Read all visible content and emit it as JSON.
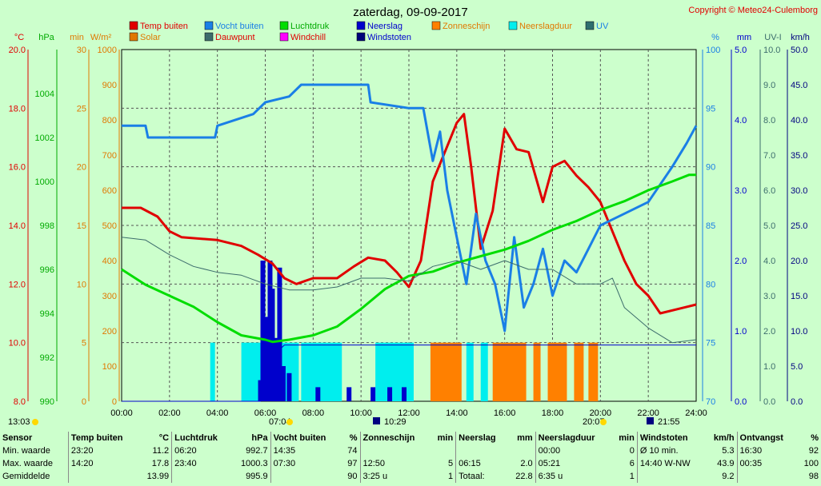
{
  "header": {
    "title": "zaterdag, 09-09-2017",
    "copyright": "Copyright © Meteo24-Culemborg"
  },
  "colors": {
    "temp": "#e00000",
    "vocht": "#1a7fe6",
    "luchtdruk": "#00dd00",
    "neerslag": "#0000cc",
    "solar": "#e07800",
    "dauwpunt": "#3c6c6c",
    "windchill": "#ff00ff",
    "windstoten": "#00007a",
    "zonneschijn": "#ff8000",
    "neerslagduur": "#00eeee",
    "uv": "#2f6f6f"
  },
  "chart_data": {
    "type": "line",
    "legend": [
      {
        "key": "temp",
        "label": "Temp buiten"
      },
      {
        "key": "vocht",
        "label": "Vocht buiten"
      },
      {
        "key": "luchtdruk",
        "label": "Luchtdruk"
      },
      {
        "key": "neerslag",
        "label": "Neerslag"
      },
      {
        "key": "zonneschijn",
        "label": "Zonneschijn"
      },
      {
        "key": "neerslagduur",
        "label": "Neerslagduur"
      },
      {
        "key": "uv",
        "label": "UV"
      },
      {
        "key": "solar",
        "label": "Solar"
      },
      {
        "key": "dauwpunt",
        "label": "Dauwpunt"
      },
      {
        "key": "windchill",
        "label": "Windchill"
      },
      {
        "key": "windstoten",
        "label": "Windstoten"
      }
    ],
    "x_ticks": [
      "00:00",
      "02:00",
      "04:00",
      "06:00",
      "08:00",
      "10:00",
      "12:00",
      "14:00",
      "16:00",
      "18:00",
      "20:00",
      "22:00",
      "24:00"
    ],
    "axes": {
      "temp": {
        "label": "°C",
        "ticks": [
          "20.0",
          "18.0",
          "16.0",
          "14.0",
          "12.0",
          "10.0",
          "8.0"
        ],
        "min": 8,
        "max": 20
      },
      "pressure": {
        "label": "hPa",
        "ticks": [
          "1004",
          "1002",
          "1000",
          "998",
          "996",
          "994",
          "992",
          "990"
        ],
        "min": 990,
        "max": 1006
      },
      "minutes": {
        "label": "min",
        "ticks": [
          "30",
          "25",
          "20",
          "15",
          "10",
          "5",
          "0"
        ],
        "min": 0,
        "max": 30
      },
      "solar": {
        "label": "W/m²",
        "ticks": [
          "1000",
          "900",
          "800",
          "700",
          "600",
          "500",
          "400",
          "300",
          "200",
          "100",
          "0"
        ],
        "min": 0,
        "max": 1000
      },
      "humidity": {
        "label": "%",
        "ticks": [
          "100",
          "95",
          "90",
          "85",
          "80",
          "75",
          "70"
        ],
        "min": 70,
        "max": 100
      },
      "rain": {
        "label": "mm",
        "ticks": [
          "5.0",
          "4.0",
          "3.0",
          "2.0",
          "1.0",
          "0.0"
        ],
        "min": 0,
        "max": 5
      },
      "uv": {
        "label": "UV-I",
        "ticks": [
          "10.0",
          "9.0",
          "8.0",
          "7.0",
          "6.0",
          "5.0",
          "4.0",
          "3.0",
          "2.0",
          "1.0",
          "0.0"
        ],
        "min": 0,
        "max": 10
      },
      "wind": {
        "label": "km/h",
        "ticks": [
          "50.0",
          "45.0",
          "40.0",
          "35.0",
          "30.0",
          "25.0",
          "20.0",
          "15.0",
          "10.0",
          "5.0",
          "0.0"
        ],
        "min": 0,
        "max": 50
      }
    },
    "series": [
      {
        "key": "temp",
        "unit": "°C",
        "points": [
          [
            0,
            14.6
          ],
          [
            0.8,
            14.6
          ],
          [
            1.5,
            14.3
          ],
          [
            2,
            13.8
          ],
          [
            2.5,
            13.6
          ],
          [
            4,
            13.5
          ],
          [
            5,
            13.3
          ],
          [
            5.7,
            13.0
          ],
          [
            6.3,
            12.7
          ],
          [
            6.8,
            12.2
          ],
          [
            7.3,
            12.0
          ],
          [
            8,
            12.2
          ],
          [
            9,
            12.2
          ],
          [
            9.7,
            12.6
          ],
          [
            10.3,
            12.9
          ],
          [
            11,
            12.8
          ],
          [
            11.5,
            12.4
          ],
          [
            12,
            11.9
          ],
          [
            12.5,
            12.8
          ],
          [
            13,
            15.5
          ],
          [
            13.5,
            16.5
          ],
          [
            14,
            17.5
          ],
          [
            14.3,
            17.8
          ],
          [
            14.6,
            16.0
          ],
          [
            15,
            13.2
          ],
          [
            15.5,
            14.5
          ],
          [
            16,
            17.3
          ],
          [
            16.5,
            16.6
          ],
          [
            17,
            16.5
          ],
          [
            17.6,
            14.8
          ],
          [
            18,
            16.0
          ],
          [
            18.5,
            16.2
          ],
          [
            19,
            15.7
          ],
          [
            19.5,
            15.3
          ],
          [
            20,
            14.8
          ],
          [
            20.5,
            13.8
          ],
          [
            21,
            12.8
          ],
          [
            21.5,
            12.0
          ],
          [
            22,
            11.6
          ],
          [
            22.5,
            11.0
          ],
          [
            23.5,
            11.2
          ],
          [
            24,
            11.3
          ]
        ]
      },
      {
        "key": "vocht",
        "unit": "%",
        "points": [
          [
            0,
            93.5
          ],
          [
            1,
            93.5
          ],
          [
            1.1,
            92.5
          ],
          [
            3.9,
            92.5
          ],
          [
            4,
            93.5
          ],
          [
            5.5,
            94.5
          ],
          [
            6,
            95.5
          ],
          [
            7,
            96
          ],
          [
            7.5,
            97
          ],
          [
            10.3,
            97
          ],
          [
            10.4,
            95.5
          ],
          [
            12,
            95
          ],
          [
            12.6,
            95
          ],
          [
            13,
            90.5
          ],
          [
            13.3,
            93
          ],
          [
            13.6,
            88
          ],
          [
            14,
            84
          ],
          [
            14.4,
            80
          ],
          [
            14.8,
            86
          ],
          [
            15.2,
            82
          ],
          [
            15.6,
            80
          ],
          [
            16,
            76
          ],
          [
            16.4,
            84
          ],
          [
            16.8,
            78
          ],
          [
            17.2,
            80
          ],
          [
            17.6,
            83
          ],
          [
            18,
            79
          ],
          [
            18.5,
            82
          ],
          [
            19,
            81
          ],
          [
            19.5,
            83
          ],
          [
            20,
            85
          ],
          [
            21,
            86
          ],
          [
            22,
            87
          ],
          [
            23,
            90
          ],
          [
            23.6,
            92
          ],
          [
            24,
            93.5
          ]
        ]
      },
      {
        "key": "luchtdruk",
        "unit": "hPa",
        "points": [
          [
            0,
            996.0
          ],
          [
            1,
            995.3
          ],
          [
            2,
            994.8
          ],
          [
            3,
            994.3
          ],
          [
            4,
            993.6
          ],
          [
            5,
            993.0
          ],
          [
            6,
            992.8
          ],
          [
            6.3,
            992.7
          ],
          [
            7,
            992.8
          ],
          [
            8,
            993.0
          ],
          [
            9,
            993.4
          ],
          [
            10,
            994.2
          ],
          [
            11,
            995.1
          ],
          [
            12,
            995.7
          ],
          [
            13,
            995.9
          ],
          [
            14,
            996.3
          ],
          [
            15,
            996.6
          ],
          [
            16,
            996.9
          ],
          [
            17,
            997.3
          ],
          [
            18,
            997.8
          ],
          [
            19,
            998.2
          ],
          [
            20,
            998.7
          ],
          [
            21,
            999.1
          ],
          [
            22,
            999.6
          ],
          [
            23,
            1000.0
          ],
          [
            23.7,
            1000.3
          ],
          [
            24,
            1000.3
          ]
        ]
      },
      {
        "key": "dauwpunt",
        "unit": "°C",
        "points": [
          [
            0,
            13.6
          ],
          [
            1,
            13.5
          ],
          [
            2,
            13.0
          ],
          [
            3,
            12.6
          ],
          [
            4,
            12.4
          ],
          [
            5,
            12.3
          ],
          [
            6,
            12.0
          ],
          [
            7,
            11.8
          ],
          [
            8,
            11.8
          ],
          [
            9,
            11.9
          ],
          [
            10,
            12.2
          ],
          [
            11,
            12.2
          ],
          [
            12,
            12.1
          ],
          [
            13,
            12.6
          ],
          [
            14,
            12.8
          ],
          [
            15,
            12.5
          ],
          [
            16,
            12.8
          ],
          [
            17,
            12.5
          ],
          [
            18,
            12.5
          ],
          [
            19,
            12.0
          ],
          [
            20,
            12.0
          ],
          [
            20.5,
            12.2
          ],
          [
            21,
            11.2
          ],
          [
            22,
            10.5
          ],
          [
            23,
            10.0
          ],
          [
            24,
            10.1
          ]
        ]
      },
      {
        "key": "neerslag_total",
        "unit": "mm",
        "points": [
          [
            0,
            0
          ],
          [
            5.8,
            0
          ],
          [
            6.2,
            0.6
          ],
          [
            6.8,
            0.8
          ],
          [
            8,
            0.8
          ],
          [
            24,
            0.8
          ]
        ]
      }
    ],
    "events": [
      {
        "label": "13:03",
        "position": "left"
      },
      {
        "label": "07:04",
        "position": "sunrise"
      },
      {
        "label": "10:29",
        "position": "moon"
      },
      {
        "label": "20:07",
        "position": "sunset"
      },
      {
        "label": "21:55",
        "position": "moon"
      }
    ]
  },
  "stats": {
    "columns": [
      {
        "name": "Sensor",
        "unit": ""
      },
      {
        "name": "Temp buiten",
        "unit": "°C"
      },
      {
        "name": "Luchtdruk",
        "unit": "hPa"
      },
      {
        "name": "Vocht buiten",
        "unit": "%"
      },
      {
        "name": "Zonneschijn",
        "unit": "min"
      },
      {
        "name": "Neerslag",
        "unit": "mm"
      },
      {
        "name": "Neerslagduur",
        "unit": "min"
      },
      {
        "name": "Windstoten",
        "unit": "km/h"
      },
      {
        "name": "Ontvangst",
        "unit": "%"
      }
    ],
    "rows": [
      {
        "label": "Min. waarde",
        "cells": [
          [
            "23:20",
            "11.2"
          ],
          [
            "06:20",
            "992.7"
          ],
          [
            "14:35",
            "74"
          ],
          [
            "",
            ""
          ],
          [
            "",
            ""
          ],
          [
            "00:00",
            "0"
          ],
          [
            "Ø 10 min.",
            "5.3"
          ],
          [
            "16:30",
            "92"
          ]
        ]
      },
      {
        "label": "Max. waarde",
        "cells": [
          [
            "14:20",
            "17.8"
          ],
          [
            "23:40",
            "1000.3"
          ],
          [
            "07:30",
            "97"
          ],
          [
            "12:50",
            "5"
          ],
          [
            "06:15",
            "2.0"
          ],
          [
            "05:21",
            "6"
          ],
          [
            "14:40  W-NW",
            "43.9"
          ],
          [
            "00:35",
            "100"
          ]
        ]
      },
      {
        "label": "Gemiddelde",
        "cells": [
          [
            "",
            "13.99"
          ],
          [
            "",
            "995.9"
          ],
          [
            "",
            "90"
          ],
          [
            "3:25 u",
            "1"
          ],
          [
            "Totaal:",
            "22.8"
          ],
          [
            "6:35 u",
            "1"
          ],
          [
            "",
            "9.2"
          ],
          [
            "",
            "98"
          ]
        ]
      }
    ]
  }
}
